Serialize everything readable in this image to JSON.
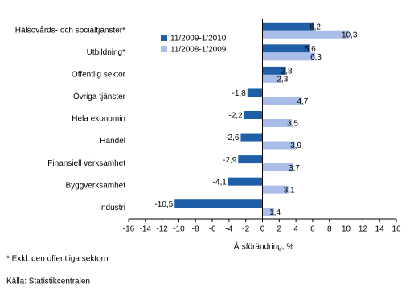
{
  "chart_data": {
    "type": "barh",
    "categories": [
      "Hälsovårds- och socialtjänster*",
      "Utbildning*",
      "Offentlig sektor",
      "Övriga tjänster",
      "Hela ekonomin",
      "Handel",
      "Finansiell verksamhet",
      "Byggverksamhet",
      "Industri"
    ],
    "series": [
      {
        "name": "11/2009-1/2010",
        "color": "#1f5fa8",
        "values": [
          6.2,
          5.6,
          2.8,
          -1.8,
          -2.2,
          -2.6,
          -2.9,
          -4.1,
          -10.5
        ],
        "value_labels": [
          "6,2",
          "5,6",
          "2,8",
          "-1,8",
          "-2,2",
          "-2,6",
          "-2,9",
          "-4,1",
          "-10,5"
        ]
      },
      {
        "name": "11/2008-1/2009",
        "color": "#a9bde8",
        "values": [
          10.3,
          6.3,
          2.3,
          4.7,
          3.5,
          3.9,
          3.7,
          3.1,
          1.4
        ],
        "value_labels": [
          "10,3",
          "6,3",
          "2,3",
          "4,7",
          "3,5",
          "3,9",
          "3,7",
          "3,1",
          "1,4"
        ]
      }
    ],
    "xlim": [
      -16,
      16
    ],
    "xticks": [
      -16,
      -14,
      -12,
      -10,
      -8,
      -6,
      -4,
      -2,
      0,
      2,
      4,
      6,
      8,
      10,
      12,
      14,
      16
    ],
    "x_label": "Årsförändring, %",
    "legend": "upper left",
    "footnote": "* Exkl. den offentliga sektorn",
    "source": "Källa: Statistikcentralen"
  }
}
